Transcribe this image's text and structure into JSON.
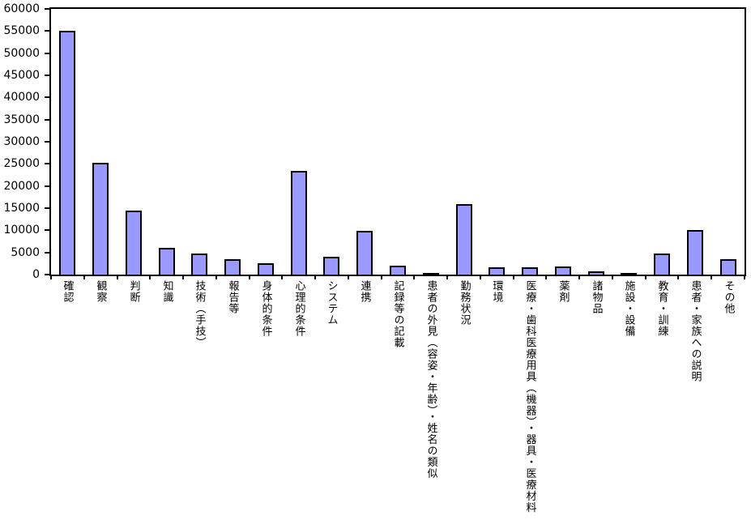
{
  "chart_data": {
    "type": "bar",
    "title": "",
    "xlabel": "",
    "ylabel": "",
    "categories": [
      "確認",
      "観察",
      "判断",
      "知識",
      "技術（手技）",
      "報告等",
      "身体的条件",
      "心理的条件",
      "システム",
      "連携",
      "記録等の記載",
      "患者の外見（容姿・年齢）・姓名の類似",
      "勤務状況",
      "環境",
      "医療・歯科医療用具（機器）・器具・医療材料",
      "薬剤",
      "諸物品",
      "施設・設備",
      "教育・訓練",
      "患者・家族への説明",
      "その他"
    ],
    "values": [
      55100,
      25200,
      14400,
      6100,
      4800,
      3500,
      2500,
      23500,
      4000,
      9900,
      2100,
      300,
      15900,
      1600,
      1700,
      1900,
      800,
      400,
      4800,
      10100,
      3400
    ],
    "ylim": [
      0,
      60000
    ],
    "ytick_step": 5000,
    "yticks": [
      0,
      5000,
      10000,
      15000,
      20000,
      25000,
      30000,
      35000,
      40000,
      45000,
      50000,
      55000,
      60000
    ],
    "grid": false,
    "legend": false,
    "x_label_orientation": "vertical",
    "colors": {
      "bar_fill": "#9999FF",
      "bar_border": "#000000",
      "axis": "#000000",
      "background": "#FFFFFF",
      "text": "#000000"
    }
  }
}
